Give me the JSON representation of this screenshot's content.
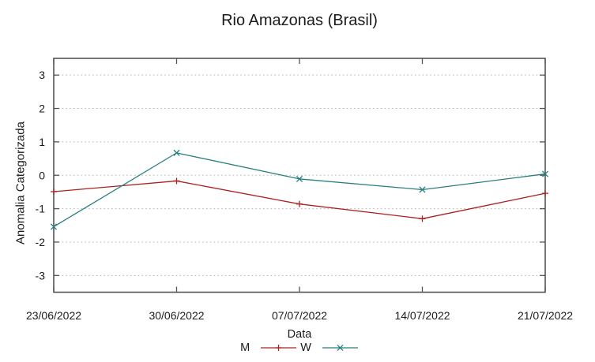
{
  "chart_data": {
    "type": "line",
    "title": "Rio Amazonas (Brasil)",
    "xlabel": "Data",
    "ylabel": "Anomalia Categorizada",
    "x_tick_labels": [
      "23/06/2022",
      "30/06/2022",
      "07/07/2022",
      "14/07/2022",
      "21/07/2022"
    ],
    "y_ticks": [
      3,
      2,
      1,
      0,
      -1,
      -2,
      -3
    ],
    "y_tick_labels": [
      "3",
      "2",
      "1",
      "0",
      "-1",
      "-2",
      "-3"
    ],
    "ylim": [
      -3.5,
      3.5
    ],
    "grid": "horizontal-dotted",
    "legend_position": "bottom-center",
    "series": [
      {
        "name": "M",
        "marker": "plus",
        "color": "#ac2020",
        "values": [
          -0.49,
          -0.17,
          -0.86,
          -1.3,
          -0.54
        ]
      },
      {
        "name": "W",
        "marker": "x",
        "color": "#2a7e7e",
        "values": [
          -1.54,
          0.67,
          -0.11,
          -0.43,
          0.04
        ]
      }
    ],
    "colors": {
      "grid": "#b5b5b5",
      "border": "#555555",
      "text": "#1b1b1b"
    }
  }
}
